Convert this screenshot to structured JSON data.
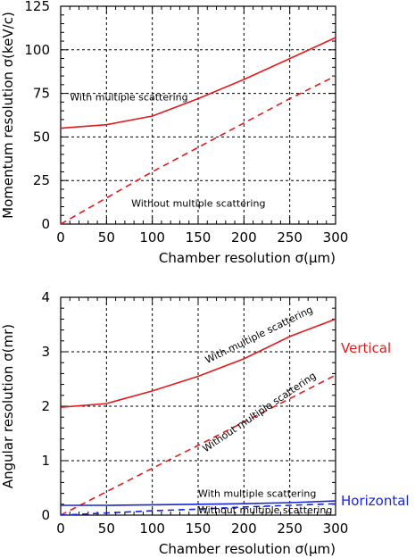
{
  "colors": {
    "red": "#e11b1b",
    "blue": "#1a24d8",
    "grid": "#000000"
  },
  "chart_data": [
    {
      "type": "line",
      "title": "",
      "xlabel": "Chamber resolution σ(μm)",
      "ylabel": "Momentum resolution σ(keV/c)",
      "xlim": [
        0,
        300
      ],
      "ylim": [
        0,
        125
      ],
      "x_ticks": [
        0,
        50,
        100,
        150,
        200,
        250,
        300
      ],
      "y_ticks": [
        0,
        25,
        50,
        75,
        100,
        125
      ],
      "grid": true,
      "series": [
        {
          "style": "solid",
          "color": "#e11b1b",
          "x": [
            0,
            50,
            100,
            150,
            200,
            250,
            300
          ],
          "y": [
            55,
            57,
            62,
            72,
            83,
            95,
            107
          ]
        },
        {
          "style": "dashed",
          "color": "#e11b1b",
          "x": [
            0,
            50,
            100,
            150,
            200,
            250,
            300
          ],
          "y": [
            0,
            15,
            30,
            44,
            58,
            72,
            85
          ]
        }
      ],
      "annotations": [
        {
          "text": "With multiple scattering",
          "x": 10,
          "y": 70,
          "angle": 0
        },
        {
          "text": "Without multiple scattering",
          "x": 77,
          "y": 9,
          "angle": 0
        }
      ]
    },
    {
      "type": "line",
      "title": "",
      "xlabel": "Chamber resolution σ(μm)",
      "ylabel": "Angular resolution σ(mr)",
      "xlim": [
        0,
        300
      ],
      "ylim": [
        0,
        4
      ],
      "x_ticks": [
        0,
        50,
        100,
        150,
        200,
        250,
        300
      ],
      "y_ticks": [
        0,
        1,
        2,
        3,
        4
      ],
      "grid": true,
      "series": [
        {
          "style": "solid",
          "color": "#e11b1b",
          "x": [
            0,
            50,
            100,
            150,
            200,
            250,
            300
          ],
          "y": [
            1.98,
            2.05,
            2.28,
            2.55,
            2.87,
            3.28,
            3.6
          ]
        },
        {
          "style": "dashed",
          "color": "#e11b1b",
          "x": [
            0,
            50,
            100,
            150,
            200,
            250,
            300
          ],
          "y": [
            0,
            0.43,
            0.86,
            1.28,
            1.71,
            2.14,
            2.57
          ]
        },
        {
          "style": "solid",
          "color": "#1a24d8",
          "x": [
            0,
            50,
            100,
            150,
            200,
            250,
            300
          ],
          "y": [
            0.18,
            0.18,
            0.19,
            0.2,
            0.21,
            0.23,
            0.26
          ]
        },
        {
          "style": "dashed",
          "color": "#1a24d8",
          "x": [
            0,
            50,
            100,
            150,
            200,
            250,
            300
          ],
          "y": [
            0.0,
            0.04,
            0.08,
            0.11,
            0.15,
            0.18,
            0.21
          ]
        }
      ],
      "annotations": [
        {
          "text": "With multiple scattering",
          "x": 160,
          "y": 2.75,
          "angle": -26
        },
        {
          "text": "Without multiple scattering",
          "x": 158,
          "y": 1.12,
          "angle": -34
        },
        {
          "text": "With multiple scattering",
          "x": 150,
          "y": 0.3,
          "angle": 0
        },
        {
          "text": "Without multiple scattering",
          "x": 150,
          "y": 0.0,
          "angle": 0
        }
      ],
      "side_labels": [
        {
          "text": "Vertical",
          "color": "#e11b1b"
        },
        {
          "text": "Horizontal",
          "color": "#1a24d8"
        }
      ]
    }
  ]
}
